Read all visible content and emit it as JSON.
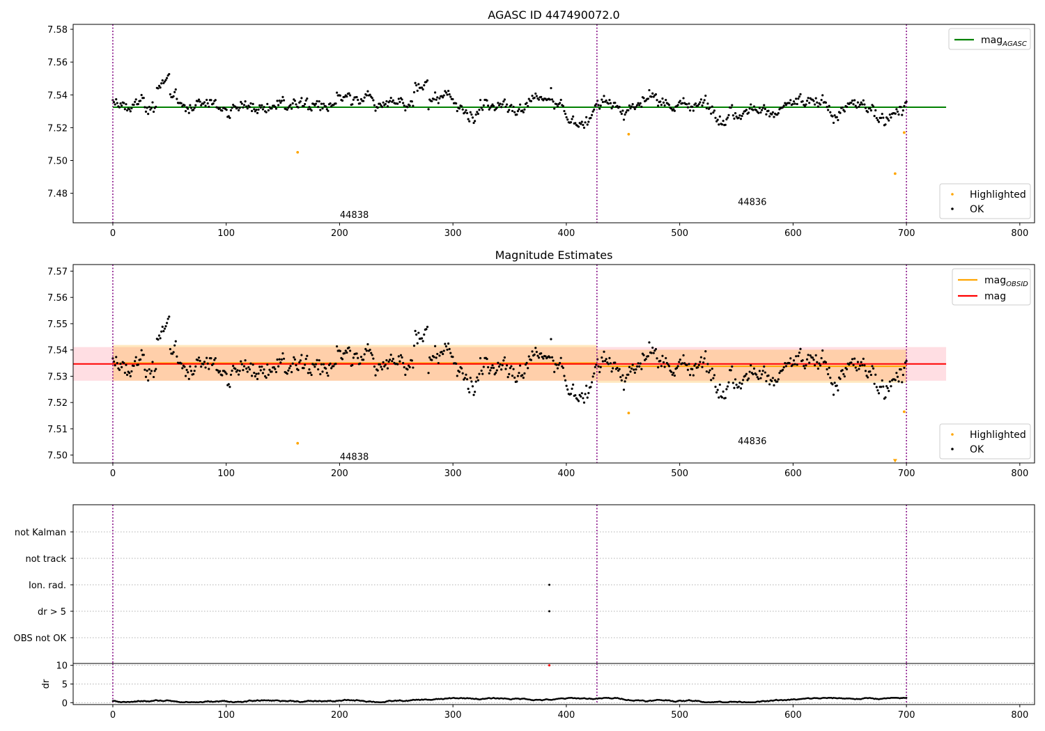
{
  "chart_data": [
    {
      "type": "scatter",
      "title": "AGASC ID 447490072.0",
      "xlabel": "",
      "ylabel": "",
      "xlim": [
        -35,
        813
      ],
      "ylim": [
        7.462,
        7.583
      ],
      "xticks": [
        0,
        100,
        200,
        300,
        400,
        500,
        600,
        700,
        800
      ],
      "yticks": [
        7.48,
        7.5,
        7.52,
        7.54,
        7.56,
        7.58
      ],
      "ytick_decimals": 2,
      "obsid_boundaries": [
        0,
        427,
        700
      ],
      "obsid_labels": [
        {
          "text": "44838",
          "x": 213,
          "y": 7.467
        },
        {
          "text": "44836",
          "x": 564,
          "y": 7.475
        }
      ],
      "lines": [
        {
          "name": "mag_AGASC",
          "color": "#008000",
          "x": [
            0,
            735
          ],
          "y": [
            7.5325,
            7.5325
          ]
        }
      ],
      "series": [
        {
          "name": "Highlighted",
          "color": "#ffa500",
          "x": [
            163,
            455,
            690,
            698
          ],
          "y": [
            7.505,
            7.516,
            7.492,
            7.517
          ]
        },
        {
          "name": "OK",
          "color": "#000000",
          "generated": "noisy light curve around 7.533, n=720, x 0-700"
        }
      ],
      "legend_top": [
        {
          "label_main": "mag",
          "label_sub": "AGASC",
          "color": "#008000"
        }
      ],
      "legend_bottom": [
        {
          "label": "Highlighted",
          "color": "#ffa500"
        },
        {
          "label": "OK",
          "color": "#000000"
        }
      ],
      "grid": false
    },
    {
      "type": "scatter",
      "title": "Magnitude Estimates",
      "xlabel": "",
      "ylabel": "",
      "xlim": [
        -35,
        813
      ],
      "ylim": [
        7.497,
        7.5725
      ],
      "xticks": [
        0,
        100,
        200,
        300,
        400,
        500,
        600,
        700,
        800
      ],
      "yticks": [
        7.5,
        7.51,
        7.52,
        7.53,
        7.54,
        7.55,
        7.56,
        7.57
      ],
      "ytick_decimals": 2,
      "obsid_boundaries": [
        0,
        427,
        700
      ],
      "obsid_labels": [
        {
          "text": "44838",
          "x": 213,
          "y": 7.4995
        },
        {
          "text": "44836",
          "x": 564,
          "y": 7.5055
        }
      ],
      "bands": [
        {
          "name": "mag range",
          "color": "#ffb6c1",
          "opacity": 0.45,
          "x": [
            -35,
            735
          ],
          "y": [
            7.5283,
            7.5411
          ]
        },
        {
          "name": "mag_OBSID 44838 range",
          "color": "#ffa500",
          "opacity": 0.25,
          "x": [
            0,
            427
          ],
          "y": [
            7.5283,
            7.5419
          ]
        },
        {
          "name": "mag_OBSID 44836 range",
          "color": "#ffa500",
          "opacity": 0.25,
          "x": [
            427,
            700
          ],
          "y": [
            7.5275,
            7.5401
          ]
        }
      ],
      "lines": [
        {
          "name": "mag_OBSID 44838",
          "color": "#ffa500",
          "x": [
            0,
            427
          ],
          "y": [
            7.535,
            7.535
          ]
        },
        {
          "name": "mag_OBSID 44836",
          "color": "#ffa500",
          "x": [
            427,
            700
          ],
          "y": [
            7.5338,
            7.5338
          ]
        },
        {
          "name": "mag",
          "color": "#ff0000",
          "x": [
            -35,
            735
          ],
          "y": [
            7.5347,
            7.5347
          ]
        }
      ],
      "series": [
        {
          "name": "Highlighted",
          "color": "#ffa500",
          "x": [
            163,
            455,
            698
          ],
          "y": [
            7.5045,
            7.516,
            7.5165
          ]
        },
        {
          "name": "OK",
          "color": "#000000",
          "generated": "same light curve as panel 1"
        }
      ],
      "offscale_marker": {
        "color": "#ffa500",
        "x": 690,
        "y": 7.4977
      },
      "legend_top": [
        {
          "label_main": "mag",
          "label_sub": "OBSID",
          "color": "#ffa500"
        },
        {
          "label_main": "mag",
          "label_sub": "",
          "color": "#ff0000"
        }
      ],
      "legend_bottom": [
        {
          "label": "Highlighted",
          "color": "#ffa500"
        },
        {
          "label": "OK",
          "color": "#000000"
        }
      ],
      "grid": false
    },
    {
      "type": "scatter",
      "title": "",
      "xlabel": "",
      "ylabel": "",
      "xlim": [
        -35,
        813
      ],
      "categories": [
        "not Kalman",
        "not track",
        "Ion. rad.",
        "dr > 5",
        "OBS not OK"
      ],
      "obsid_boundaries": [
        0,
        427,
        700
      ],
      "flag_points": [
        {
          "category": "Ion. rad.",
          "x": 385
        },
        {
          "category": "dr > 5",
          "x": 385
        }
      ],
      "grid": true
    },
    {
      "type": "scatter",
      "title": "",
      "xlabel": "",
      "ylabel": "dr",
      "xlim": [
        -35,
        813
      ],
      "ylim": [
        -0.5,
        10.5
      ],
      "xticks": [
        0,
        100,
        200,
        300,
        400,
        500,
        600,
        700,
        800
      ],
      "yticks": [
        0,
        5,
        10
      ],
      "ytick_decimals": 0,
      "obsid_boundaries": [
        0,
        427,
        700
      ],
      "outlier": {
        "color": "#ff0000",
        "x": 385,
        "y": 10
      },
      "series": [
        {
          "name": "dr",
          "color": "#000000",
          "generated": "small dr values 0.1-1.3, n=720, x 0-700"
        }
      ],
      "grid": true
    }
  ]
}
